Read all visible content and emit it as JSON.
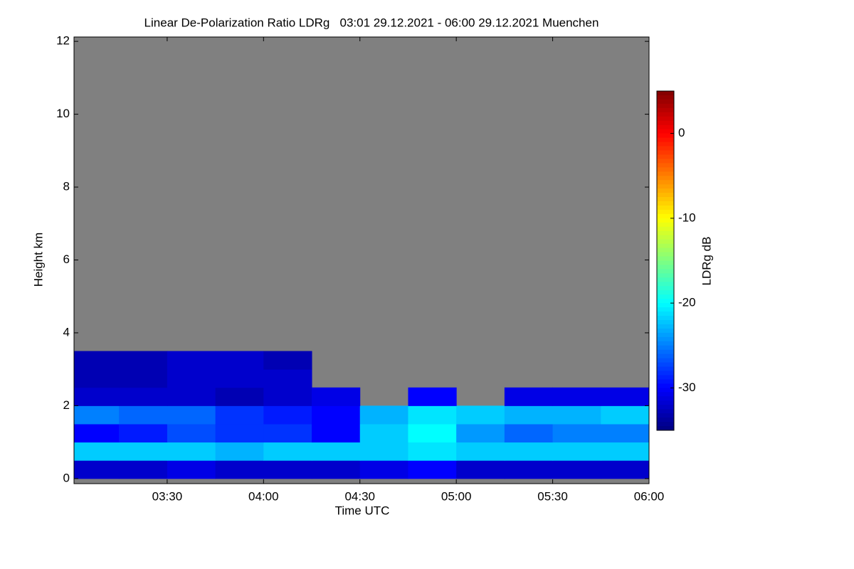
{
  "chart_data": {
    "type": "heatmap",
    "title": "Linear De-Polarization Ratio LDRg   03:01 29.12.2021 - 06:00 29.12.2021 Muenchen",
    "x_label": "Time UTC",
    "y_label": "Height km",
    "colorbar_label": "LDRg dB",
    "x_edges": [
      3.0167,
      3.25,
      3.5,
      3.75,
      4.0,
      4.25,
      4.5,
      4.75,
      5.0,
      5.25,
      5.5,
      5.75,
      6.0
    ],
    "y_edges": [
      0,
      0.5,
      1,
      1.5,
      2,
      2.5,
      3,
      3.5
    ],
    "z": [
      [
        -32,
        -32,
        -31,
        -32,
        -32,
        -32,
        -31,
        -30,
        -32,
        -32,
        -32,
        -32
      ],
      [
        -22,
        -22,
        -22,
        -23,
        -22,
        -22,
        -22,
        -21,
        -22,
        -22,
        -22,
        -22
      ],
      [
        -30,
        -29,
        -27,
        -28,
        -28,
        -30,
        -22,
        -20,
        -24,
        -26,
        -25,
        -25
      ],
      [
        -25,
        -26,
        -26,
        -28,
        -29,
        -30,
        -23,
        -21,
        -22,
        -23,
        -23,
        -22
      ],
      [
        -32,
        -32,
        -32,
        -33,
        -32,
        -31,
        null,
        -30,
        null,
        -31,
        -31,
        -31
      ],
      [
        -33,
        -33,
        -32,
        -32,
        -32,
        null,
        null,
        null,
        null,
        null,
        null,
        null
      ],
      [
        -33,
        -33,
        -32,
        -32,
        -33,
        null,
        null,
        null,
        null,
        null,
        null,
        null
      ]
    ],
    "xlim": [
      3.0167,
      6.0
    ],
    "xticks": [
      {
        "value": 3.5,
        "label": "03:30"
      },
      {
        "value": 4.0,
        "label": "04:00"
      },
      {
        "value": 4.5,
        "label": "04:30"
      },
      {
        "value": 5.0,
        "label": "05:00"
      },
      {
        "value": 5.5,
        "label": "05:30"
      },
      {
        "value": 6.0,
        "label": "06:00"
      }
    ],
    "ylim": [
      -0.14,
      12.12
    ],
    "yticks": [
      0,
      2,
      4,
      6,
      8,
      10,
      12
    ],
    "zlim": [
      -35,
      5
    ],
    "zticks": [
      -30,
      -20,
      -10,
      0
    ],
    "missing_color": "#808080"
  }
}
